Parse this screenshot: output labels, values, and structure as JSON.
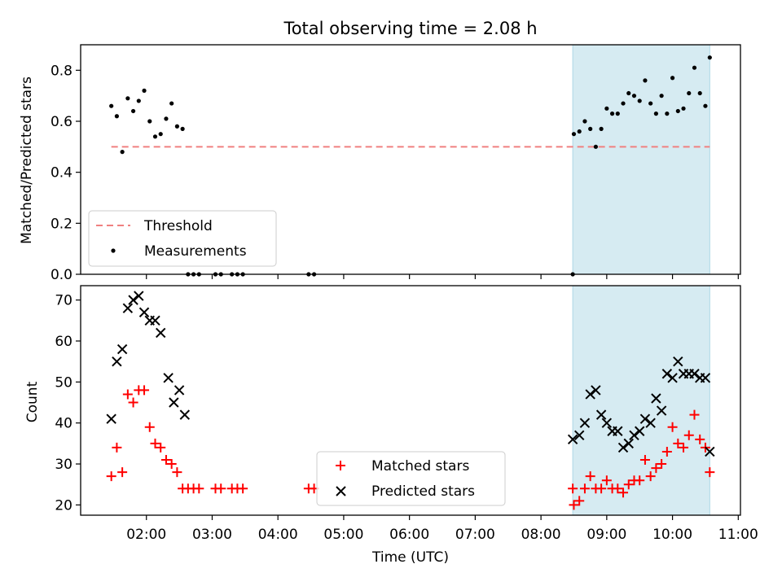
{
  "chart_data": {
    "title": "Total observing time = 2.08 h",
    "xlabel": "Time (UTC)",
    "x_ticks": [
      "02:00",
      "03:00",
      "04:00",
      "05:00",
      "06:00",
      "07:00",
      "08:00",
      "09:00",
      "10:00",
      "11:00"
    ],
    "colors": {
      "threshold": "#f08080",
      "measurements": "#000000",
      "matched": "#ff0000",
      "predicted": "#000000",
      "span": "#add8e6"
    },
    "highlight_span": [
      "08:29",
      "10:34"
    ],
    "panels": [
      {
        "type": "scatter",
        "ylabel": "Matched/Predicted stars",
        "ylim": [
          0,
          0.9
        ],
        "y_ticks": [
          "0.0",
          "0.2",
          "0.4",
          "0.6",
          "0.8"
        ],
        "legend_placement": "lower-left",
        "legend": [
          "Threshold",
          "Measurements"
        ],
        "threshold": {
          "name": "Threshold",
          "value": 0.5,
          "x_range": [
            "01:28",
            "10:34"
          ]
        },
        "series": [
          {
            "name": "Measurements",
            "points": [
              [
                "01:28",
                0.66
              ],
              [
                "01:33",
                0.62
              ],
              [
                "01:38",
                0.48
              ],
              [
                "01:43",
                0.69
              ],
              [
                "01:48",
                0.64
              ],
              [
                "01:53",
                0.68
              ],
              [
                "01:58",
                0.72
              ],
              [
                "02:03",
                0.6
              ],
              [
                "02:08",
                0.54
              ],
              [
                "02:13",
                0.55
              ],
              [
                "02:18",
                0.61
              ],
              [
                "02:23",
                0.67
              ],
              [
                "02:28",
                0.58
              ],
              [
                "02:33",
                0.57
              ],
              [
                "02:38",
                0.0
              ],
              [
                "02:43",
                0.0
              ],
              [
                "02:48",
                0.0
              ],
              [
                "03:03",
                0.0
              ],
              [
                "03:08",
                0.0
              ],
              [
                "03:18",
                0.0
              ],
              [
                "03:23",
                0.0
              ],
              [
                "03:28",
                0.0
              ],
              [
                "04:28",
                0.0
              ],
              [
                "04:33",
                0.0
              ],
              [
                "08:29",
                0.0
              ],
              [
                "08:30",
                0.55
              ],
              [
                "08:35",
                0.56
              ],
              [
                "08:40",
                0.6
              ],
              [
                "08:45",
                0.57
              ],
              [
                "08:50",
                0.5
              ],
              [
                "08:55",
                0.57
              ],
              [
                "09:00",
                0.65
              ],
              [
                "09:05",
                0.63
              ],
              [
                "09:10",
                0.63
              ],
              [
                "09:15",
                0.67
              ],
              [
                "09:20",
                0.71
              ],
              [
                "09:25",
                0.7
              ],
              [
                "09:30",
                0.68
              ],
              [
                "09:35",
                0.76
              ],
              [
                "09:40",
                0.67
              ],
              [
                "09:45",
                0.63
              ],
              [
                "09:50",
                0.7
              ],
              [
                "09:55",
                0.63
              ],
              [
                "10:00",
                0.77
              ],
              [
                "10:05",
                0.64
              ],
              [
                "10:10",
                0.65
              ],
              [
                "10:15",
                0.71
              ],
              [
                "10:20",
                0.81
              ],
              [
                "10:25",
                0.71
              ],
              [
                "10:30",
                0.66
              ],
              [
                "10:34",
                0.85
              ]
            ]
          }
        ]
      },
      {
        "type": "scatter",
        "ylabel": "Count",
        "ylim": [
          17.5,
          73.5
        ],
        "y_ticks": [
          "20",
          "30",
          "40",
          "50",
          "60",
          "70"
        ],
        "legend_placement": "lower-center",
        "legend": [
          "Matched stars",
          "Predicted stars"
        ],
        "series": [
          {
            "name": "Matched stars",
            "marker": "plus",
            "points": [
              [
                "01:28",
                27
              ],
              [
                "01:33",
                34
              ],
              [
                "01:38",
                28
              ],
              [
                "01:43",
                47
              ],
              [
                "01:48",
                45
              ],
              [
                "01:53",
                48
              ],
              [
                "01:58",
                48
              ],
              [
                "02:03",
                39
              ],
              [
                "02:08",
                35
              ],
              [
                "02:13",
                34
              ],
              [
                "02:18",
                31
              ],
              [
                "02:23",
                30
              ],
              [
                "02:28",
                28
              ],
              [
                "02:33",
                24
              ],
              [
                "02:38",
                24
              ],
              [
                "02:43",
                24
              ],
              [
                "02:48",
                24
              ],
              [
                "03:03",
                24
              ],
              [
                "03:08",
                24
              ],
              [
                "03:18",
                24
              ],
              [
                "03:23",
                24
              ],
              [
                "03:28",
                24
              ],
              [
                "04:28",
                24
              ],
              [
                "04:33",
                24
              ],
              [
                "08:29",
                24
              ],
              [
                "08:30",
                20
              ],
              [
                "08:35",
                21
              ],
              [
                "08:40",
                24
              ],
              [
                "08:45",
                27
              ],
              [
                "08:50",
                24
              ],
              [
                "08:55",
                24
              ],
              [
                "09:00",
                26
              ],
              [
                "09:05",
                24
              ],
              [
                "09:10",
                24
              ],
              [
                "09:15",
                23
              ],
              [
                "09:20",
                25
              ],
              [
                "09:25",
                26
              ],
              [
                "09:30",
                26
              ],
              [
                "09:35",
                31
              ],
              [
                "09:40",
                27
              ],
              [
                "09:45",
                29
              ],
              [
                "09:50",
                30
              ],
              [
                "09:55",
                33
              ],
              [
                "10:00",
                39
              ],
              [
                "10:05",
                35
              ],
              [
                "10:10",
                34
              ],
              [
                "10:15",
                37
              ],
              [
                "10:20",
                42
              ],
              [
                "10:25",
                36
              ],
              [
                "10:30",
                34
              ],
              [
                "10:34",
                28
              ]
            ]
          },
          {
            "name": "Predicted stars",
            "marker": "x",
            "points": [
              [
                "01:28",
                41
              ],
              [
                "01:33",
                55
              ],
              [
                "01:38",
                58
              ],
              [
                "01:43",
                68
              ],
              [
                "01:48",
                70
              ],
              [
                "01:53",
                71
              ],
              [
                "01:58",
                67
              ],
              [
                "02:03",
                65
              ],
              [
                "02:08",
                65
              ],
              [
                "02:13",
                62
              ],
              [
                "02:20",
                51
              ],
              [
                "02:25",
                45
              ],
              [
                "02:30",
                48
              ],
              [
                "02:35",
                42
              ],
              [
                "08:29",
                36
              ],
              [
                "08:35",
                37
              ],
              [
                "08:40",
                40
              ],
              [
                "08:45",
                47
              ],
              [
                "08:50",
                48
              ],
              [
                "08:55",
                42
              ],
              [
                "09:00",
                40
              ],
              [
                "09:05",
                38
              ],
              [
                "09:10",
                38
              ],
              [
                "09:15",
                34
              ],
              [
                "09:20",
                35
              ],
              [
                "09:25",
                37
              ],
              [
                "09:30",
                38
              ],
              [
                "09:35",
                41
              ],
              [
                "09:40",
                40
              ],
              [
                "09:45",
                46
              ],
              [
                "09:50",
                43
              ],
              [
                "09:55",
                52
              ],
              [
                "10:00",
                51
              ],
              [
                "10:05",
                55
              ],
              [
                "10:10",
                52
              ],
              [
                "10:15",
                52
              ],
              [
                "10:20",
                52
              ],
              [
                "10:25",
                51
              ],
              [
                "10:30",
                51
              ],
              [
                "10:34",
                33
              ]
            ]
          }
        ]
      }
    ]
  }
}
